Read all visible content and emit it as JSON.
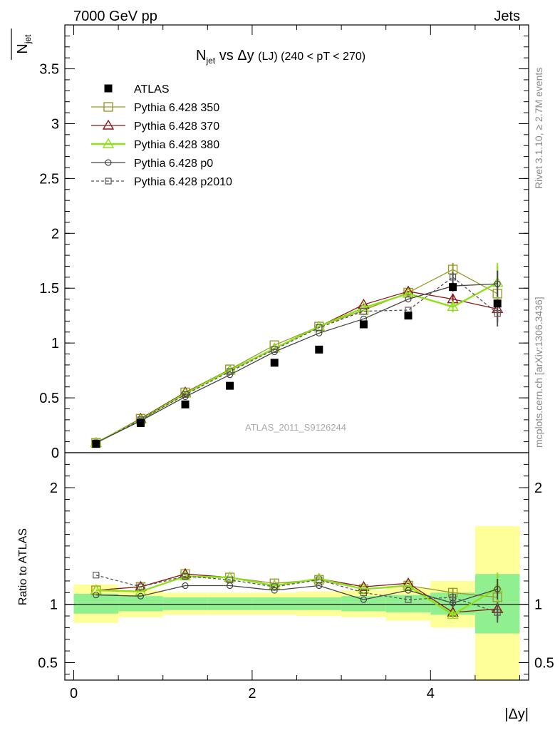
{
  "header": {
    "energy_label": "7000 GeV pp",
    "category_label": "Jets",
    "side_rivet": "Rivet 3.1.10, ≥ 2.7M events",
    "side_mcplots": "mcplots.cern.ch [arXiv:1306.3436]"
  },
  "chart_data": [
    {
      "type": "line",
      "panel": "main",
      "title_main": "N",
      "title_sub": "jet",
      "title_rest": " vs Δy ",
      "title_small": "(LJ) (240 < pT < 270)",
      "ylabel_main": "N",
      "ylabel_sub": "jet",
      "watermark": "ATLAS_2011_S9126244",
      "ylim": [
        0,
        3.9
      ],
      "xlim": [
        -0.1,
        5.1
      ],
      "yticks": [
        0,
        0.5,
        1,
        1.5,
        2,
        2.5,
        3,
        3.5
      ],
      "ytick_labels": [
        "0",
        "0.5",
        "1",
        "1.5",
        "2",
        "2.5",
        "3",
        "3.5"
      ],
      "x": [
        0.25,
        0.75,
        1.25,
        1.75,
        2.25,
        2.75,
        3.25,
        3.75,
        4.25,
        4.75
      ],
      "legend_position": "top-left",
      "series": [
        {
          "name": "ATLAS",
          "color": "#000000",
          "marker": "filled-square",
          "line": "none",
          "values": [
            0.08,
            0.27,
            0.44,
            0.61,
            0.82,
            0.94,
            1.17,
            1.25,
            1.51,
            1.36
          ]
        },
        {
          "name": "Pythia 6.428 350",
          "color": "#9a9a2a",
          "marker": "open-square",
          "line": "solid",
          "values": [
            0.09,
            0.31,
            0.55,
            0.76,
            0.98,
            1.15,
            1.3,
            1.46,
            1.67,
            1.45
          ],
          "errors": [
            0,
            0,
            0,
            0,
            0,
            0,
            0,
            0,
            0.06,
            0.25
          ]
        },
        {
          "name": "Pythia 6.428 370",
          "color": "#8b1a1a",
          "marker": "open-triangle",
          "line": "solid",
          "values": [
            0.09,
            0.31,
            0.55,
            0.75,
            0.95,
            1.15,
            1.35,
            1.47,
            1.4,
            1.31
          ],
          "errors": [
            0,
            0,
            0,
            0,
            0,
            0,
            0,
            0,
            0.05,
            0.12
          ]
        },
        {
          "name": "Pythia 6.428 380",
          "color": "#8ee01b",
          "marker": "open-triangle",
          "line": "solid-thick",
          "values": [
            0.09,
            0.3,
            0.54,
            0.75,
            0.95,
            1.15,
            1.32,
            1.45,
            1.33,
            1.55
          ],
          "errors": [
            0,
            0,
            0,
            0,
            0,
            0,
            0,
            0,
            0.05,
            0.18
          ]
        },
        {
          "name": "Pythia 6.428 p0",
          "color": "#444444",
          "marker": "open-circle",
          "line": "solid",
          "values": [
            0.09,
            0.29,
            0.51,
            0.71,
            0.92,
            1.09,
            1.22,
            1.4,
            1.52,
            1.54
          ],
          "errors": [
            0,
            0,
            0,
            0,
            0,
            0,
            0,
            0,
            0.05,
            0.12
          ]
        },
        {
          "name": "Pythia 6.428 p2010",
          "color": "#555555",
          "marker": "open-square-small",
          "line": "dashed",
          "values": [
            0.09,
            0.3,
            0.53,
            0.74,
            0.94,
            1.14,
            1.29,
            1.3,
            1.6,
            1.27
          ],
          "errors": [
            0,
            0,
            0,
            0,
            0,
            0,
            0,
            0,
            0.05,
            0.12
          ]
        }
      ]
    },
    {
      "type": "line",
      "panel": "ratio",
      "ylabel": "Ratio to ATLAS",
      "xlabel": "|Δy|",
      "ylim": [
        0.35,
        2.3
      ],
      "xlim": [
        -0.1,
        5.1
      ],
      "yticks": [
        0.5,
        1,
        2
      ],
      "ytick_labels": [
        "0.5",
        "1",
        "2"
      ],
      "xticks": [
        0,
        2,
        4
      ],
      "xtick_labels": [
        "0",
        "2",
        "4"
      ],
      "x": [
        0.25,
        0.75,
        1.25,
        1.75,
        2.25,
        2.75,
        3.25,
        3.75,
        4.25,
        4.75
      ],
      "bin_edges": [
        0,
        0.5,
        1,
        1.5,
        2,
        2.5,
        3,
        3.5,
        4,
        4.5,
        5
      ],
      "band_inner": [
        [
          0.92,
          1.09
        ],
        [
          0.94,
          1.07
        ],
        [
          0.95,
          1.06
        ],
        [
          0.95,
          1.06
        ],
        [
          0.95,
          1.06
        ],
        [
          0.95,
          1.06
        ],
        [
          0.94,
          1.07
        ],
        [
          0.93,
          1.08
        ],
        [
          0.91,
          1.1
        ],
        [
          0.75,
          1.26
        ]
      ],
      "band_outer": [
        [
          0.84,
          1.17
        ],
        [
          0.89,
          1.12
        ],
        [
          0.91,
          1.1
        ],
        [
          0.91,
          1.1
        ],
        [
          0.91,
          1.1
        ],
        [
          0.9,
          1.11
        ],
        [
          0.89,
          1.12
        ],
        [
          0.86,
          1.14
        ],
        [
          0.8,
          1.2
        ],
        [
          0.35,
          1.67
        ]
      ],
      "band_inner_color": "#90f090",
      "band_outer_color": "#ffff99",
      "series": [
        {
          "name": "Pythia 6.428 350",
          "values": [
            1.12,
            1.15,
            1.26,
            1.23,
            1.18,
            1.21,
            1.13,
            1.16,
            1.1,
            1.06
          ]
        },
        {
          "name": "Pythia 6.428 370",
          "values": [
            1.12,
            1.15,
            1.26,
            1.23,
            1.16,
            1.22,
            1.15,
            1.18,
            0.93,
            0.96
          ]
        },
        {
          "name": "Pythia 6.428 380",
          "values": [
            1.12,
            1.11,
            1.24,
            1.23,
            1.16,
            1.22,
            1.13,
            1.16,
            0.91,
            1.14
          ]
        },
        {
          "name": "Pythia 6.428 p0",
          "values": [
            1.08,
            1.07,
            1.16,
            1.16,
            1.12,
            1.16,
            1.04,
            1.12,
            1.01,
            1.13
          ]
        },
        {
          "name": "Pythia 6.428 p2010",
          "values": [
            1.25,
            1.15,
            1.24,
            1.21,
            1.15,
            1.21,
            1.1,
            1.04,
            1.06,
            0.93
          ]
        }
      ]
    }
  ]
}
